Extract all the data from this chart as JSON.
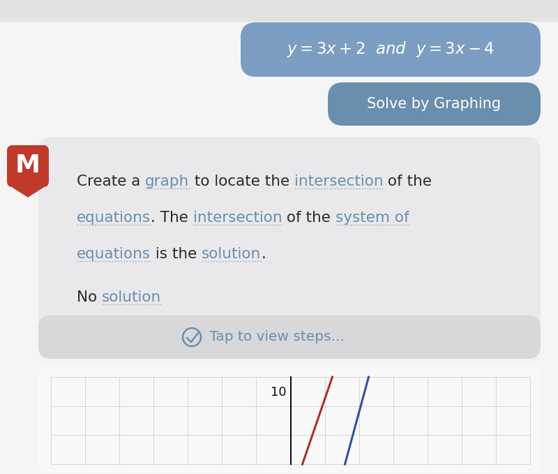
{
  "bg_color": "#f5f5f5",
  "bubble1_color": "#7b9ec2",
  "bubble2_color": "#6a8eae",
  "bubble1_text": "$y = 3x + 2$  and  $y = 3x - 4$",
  "bubble2_text": "Solve by Graphing",
  "response_bg": "#e9e9eb",
  "tap_bg": "#d8d8da",
  "graph_bg": "#f0f0f2",
  "tap_text": " Tap to view steps...",
  "graph_label": "10",
  "line1_color": "#a83228",
  "line2_color": "#3050a0",
  "icon_color": "#c0392b",
  "text_dark": "#2a2a2a",
  "text_blue": "#6a8eae",
  "underline_color": "#b0b0b0",
  "top_bar_color": "#e2e2e2",
  "white": "#ffffff"
}
